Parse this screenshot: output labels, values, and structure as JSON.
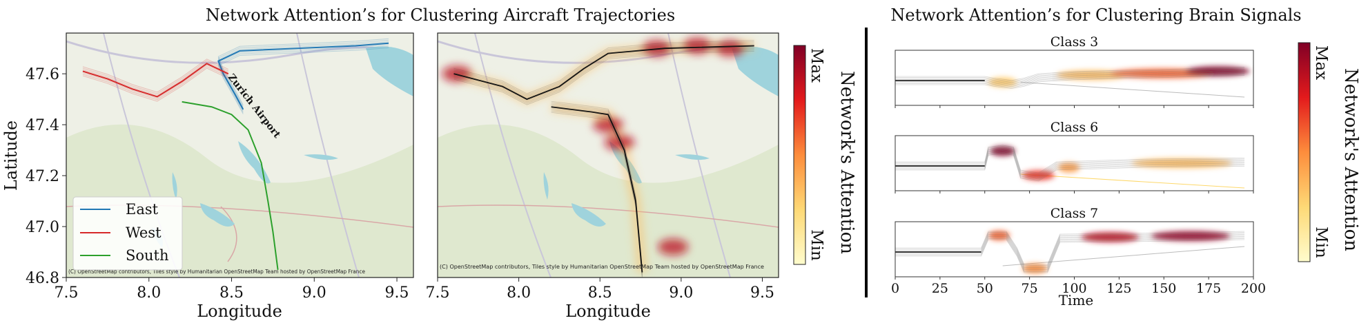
{
  "left_title": "Network Attention’s for Clustering Aircraft Trajectories",
  "right_title": "Network Attention’s for Clustering Brain Signals",
  "map_copyright": "(C) OpenStreetMap contributors, Tiles style by Humanitarian OpenStreetMap Team hosted by OpenStreetMap France",
  "airport_label": "Zurich Airport",
  "colors": {
    "east": "#1f77b4",
    "west": "#d62728",
    "south": "#2ca02c",
    "heat_max": "#7f0a23",
    "heat_min": "#fff7bc"
  },
  "colorbar": {
    "max_label": "Max",
    "min_label": "Min",
    "title": "Network's Attention"
  },
  "chart_data": [
    {
      "type": "line",
      "panel": "map-clusters",
      "xlabel": "Longitude",
      "ylabel": "Latitude",
      "xlim": [
        7.5,
        9.6
      ],
      "ylim": [
        46.8,
        47.76
      ],
      "x_ticks": [
        "7.5",
        "8.0",
        "8.5",
        "9.0",
        "9.5"
      ],
      "y_ticks": [
        "46.8",
        "47.0",
        "47.2",
        "47.4",
        "47.6"
      ],
      "legend_position": "bottom-left",
      "series": [
        {
          "name": "East",
          "color": "#1f77b4",
          "points": [
            [
              8.57,
              47.46
            ],
            [
              8.52,
              47.52
            ],
            [
              8.45,
              47.6
            ],
            [
              8.42,
              47.65
            ],
            [
              8.55,
              47.69
            ],
            [
              8.9,
              47.7
            ],
            [
              9.25,
              47.71
            ],
            [
              9.45,
              47.72
            ]
          ]
        },
        {
          "name": "West",
          "color": "#d62728",
          "points": [
            [
              7.6,
              47.61
            ],
            [
              7.75,
              47.58
            ],
            [
              7.9,
              47.54
            ],
            [
              8.05,
              47.51
            ],
            [
              8.2,
              47.57
            ],
            [
              8.35,
              47.64
            ],
            [
              8.48,
              47.6
            ]
          ]
        },
        {
          "name": "South",
          "color": "#2ca02c",
          "points": [
            [
              8.2,
              47.49
            ],
            [
              8.38,
              47.47
            ],
            [
              8.5,
              47.44
            ],
            [
              8.6,
              47.38
            ],
            [
              8.68,
              47.25
            ],
            [
              8.72,
              47.1
            ],
            [
              8.75,
              46.98
            ],
            [
              8.78,
              46.83
            ]
          ]
        }
      ]
    },
    {
      "type": "heatmap",
      "panel": "map-attention",
      "xlabel": "Longitude",
      "xlim": [
        7.5,
        9.6
      ],
      "ylim": [
        46.8,
        47.76
      ],
      "x_ticks": [
        "7.5",
        "8.0",
        "8.5",
        "9.0",
        "9.5"
      ],
      "tracks": [
        [
          [
            7.6,
            47.6
          ],
          [
            7.9,
            47.55
          ],
          [
            8.05,
            47.5
          ],
          [
            8.25,
            47.55
          ],
          [
            8.4,
            47.62
          ],
          [
            8.55,
            47.68
          ],
          [
            8.9,
            47.7
          ],
          [
            9.45,
            47.71
          ]
        ],
        [
          [
            8.2,
            47.47
          ],
          [
            8.45,
            47.45
          ],
          [
            8.55,
            47.44
          ],
          [
            8.65,
            47.3
          ],
          [
            8.72,
            47.1
          ],
          [
            8.76,
            46.82
          ]
        ]
      ],
      "hotspots": [
        [
          7.62,
          47.6
        ],
        [
          8.55,
          47.4
        ],
        [
          8.62,
          47.33
        ],
        [
          8.85,
          47.7
        ],
        [
          9.1,
          47.71
        ],
        [
          9.3,
          47.7
        ],
        [
          8.95,
          46.92
        ]
      ]
    },
    {
      "type": "line",
      "panel": "brain-signals",
      "xlabel": "Time",
      "xlim": [
        0,
        200
      ],
      "x_ticks": [
        "0",
        "25",
        "50",
        "75",
        "100",
        "125",
        "150",
        "175",
        "200"
      ],
      "subplots": [
        {
          "title": "Class 3",
          "baseline": [
            [
              0,
              0.45
            ],
            [
              50,
              0.45
            ],
            [
              55,
              0.42
            ],
            [
              60,
              0.4
            ],
            [
              65,
              0.38
            ],
            [
              72,
              0.42
            ],
            [
              80,
              0.5
            ],
            [
              100,
              0.54
            ],
            [
              150,
              0.58
            ],
            [
              195,
              0.62
            ]
          ],
          "outlier": [
            [
              70,
              0.42
            ],
            [
              195,
              0.15
            ]
          ],
          "attention": [
            [
              60,
              0.42,
              8,
              0.3
            ],
            [
              110,
              0.55,
              20,
              0.35
            ],
            [
              150,
              0.58,
              30,
              0.6
            ],
            [
              180,
              0.62,
              18,
              1.0
            ]
          ]
        },
        {
          "title": "Class 6",
          "baseline": [
            [
              0,
              0.45
            ],
            [
              50,
              0.45
            ],
            [
              52,
              0.72
            ],
            [
              60,
              0.75
            ],
            [
              66,
              0.72
            ],
            [
              70,
              0.3
            ],
            [
              80,
              0.25
            ],
            [
              90,
              0.45
            ],
            [
              140,
              0.5
            ],
            [
              195,
              0.52
            ]
          ],
          "outlier": [
            [
              70,
              0.3
            ],
            [
              195,
              0.05
            ]
          ],
          "attention": [
            [
              60,
              0.72,
              7,
              1.0
            ],
            [
              80,
              0.28,
              9,
              0.7
            ],
            [
              97,
              0.42,
              6,
              0.45
            ],
            [
              160,
              0.5,
              28,
              0.35
            ]
          ]
        },
        {
          "title": "Class 7",
          "baseline": [
            [
              0,
              0.45
            ],
            [
              48,
              0.45
            ],
            [
              52,
              0.75
            ],
            [
              62,
              0.75
            ],
            [
              68,
              0.45
            ],
            [
              72,
              0.15
            ],
            [
              85,
              0.15
            ],
            [
              92,
              0.7
            ],
            [
              150,
              0.72
            ],
            [
              195,
              0.75
            ]
          ],
          "outlier": [
            [
              60,
              0.2
            ],
            [
              195,
              0.55
            ]
          ],
          "attention": [
            [
              58,
              0.75,
              6,
              0.6
            ],
            [
              78,
              0.15,
              7,
              0.5
            ],
            [
              120,
              0.72,
              16,
              0.85
            ],
            [
              165,
              0.74,
              22,
              0.95
            ]
          ]
        }
      ]
    }
  ]
}
